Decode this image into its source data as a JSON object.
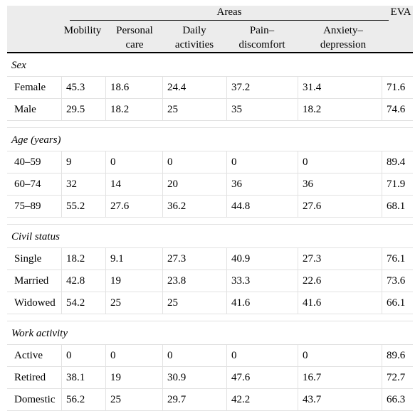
{
  "table": {
    "group_header": "Areas",
    "eva_header": "EVA",
    "columns": [
      [
        "Mobility",
        ""
      ],
      [
        "Personal",
        "care"
      ],
      [
        "Daily",
        "activities"
      ],
      [
        "Pain–",
        "discomfort"
      ],
      [
        "Anxiety–",
        "depression"
      ]
    ],
    "sections": [
      {
        "title": "Sex",
        "rows": [
          [
            "Female",
            "45.3",
            "18.6",
            "24.4",
            "37.2",
            "31.4",
            "71.6"
          ],
          [
            "Male",
            "29.5",
            "18.2",
            "25",
            "35",
            "18.2",
            "74.6"
          ]
        ]
      },
      {
        "title": "Age (years)",
        "rows": [
          [
            "40–59",
            "9",
            "0",
            "0",
            "0",
            "0",
            "89.4"
          ],
          [
            "60–74",
            "32",
            "14",
            "20",
            "36",
            "36",
            "71.9"
          ],
          [
            "75–89",
            "55.2",
            "27.6",
            "36.2",
            "44.8",
            "27.6",
            "68.1"
          ]
        ]
      },
      {
        "title": "Civil status",
        "rows": [
          [
            "Single",
            "18.2",
            "9.1",
            "27.3",
            "40.9",
            "27.3",
            "76.1"
          ],
          [
            "Married",
            "42.8",
            "19",
            "23.8",
            "33.3",
            "22.6",
            "73.6"
          ],
          [
            "Widowed",
            "54.2",
            "25",
            "25",
            "41.6",
            "41.6",
            "66.1"
          ]
        ]
      },
      {
        "title": "Work activity",
        "rows": [
          [
            "Active",
            "0",
            "0",
            "0",
            "0",
            "0",
            "89.6"
          ],
          [
            "Retired",
            "38.1",
            "19",
            "30.9",
            "47.6",
            "16.7",
            "72.7"
          ],
          [
            "Domestic",
            "56.2",
            "25",
            "29.7",
            "42.2",
            "43.7",
            "66.3"
          ]
        ]
      }
    ]
  }
}
